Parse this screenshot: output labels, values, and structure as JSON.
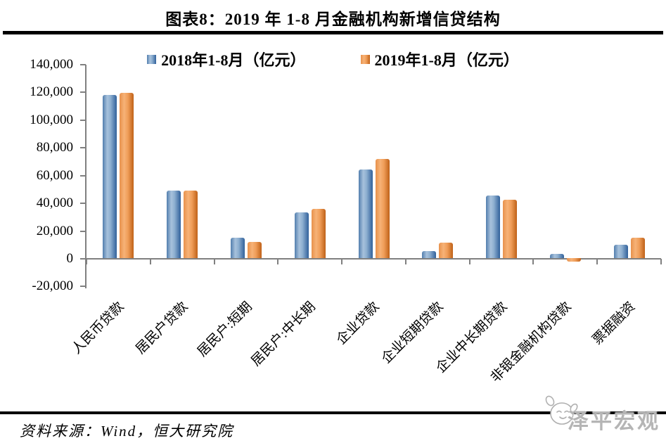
{
  "page": {
    "title": "图表8：2019 年 1-8 月金融机构新增信贷结构",
    "source_note": "资料来源：Wind，恒大研究院",
    "watermark": "泽平宏观"
  },
  "colors": {
    "series_2018_blue": "#4f81bd",
    "series_2019_orange": "#ed9a50",
    "axis_gray": "#808080",
    "rule_black": "#000000",
    "watermark_gray": "#b5b5b5"
  },
  "chart_data": {
    "type": "bar",
    "title": "图表8：2019 年 1-8 月金融机构新增信贷结构",
    "unit": "亿元",
    "legend_position": "top",
    "grid": false,
    "categories": [
      "人民币贷款",
      "居民户贷款",
      "居民户:短期",
      "居民户:中长期",
      "企业贷款",
      "企业短期贷款",
      "企业中长期贷款",
      "非银金融机构贷款",
      "票据融资"
    ],
    "series": [
      {
        "name": "2018年1-8月（亿元）",
        "color": "#4f81bd",
        "values": [
          118000,
          49300,
          15000,
          33700,
          64400,
          5500,
          45700,
          3700,
          10000
        ]
      },
      {
        "name": "2019年1-8月（亿元）",
        "color": "#ed9a50",
        "values": [
          119700,
          49300,
          12200,
          36200,
          71800,
          11800,
          42700,
          -1800,
          15300
        ]
      }
    ],
    "ylim": [
      -20000,
      140000
    ],
    "y_tick_step": 20000,
    "y_tick_labels": [
      "140,000",
      "120,000",
      "100,000",
      "80,000",
      "60,000",
      "40,000",
      "20,000",
      "0",
      "-20,000"
    ],
    "xlabel": "",
    "ylabel": ""
  }
}
